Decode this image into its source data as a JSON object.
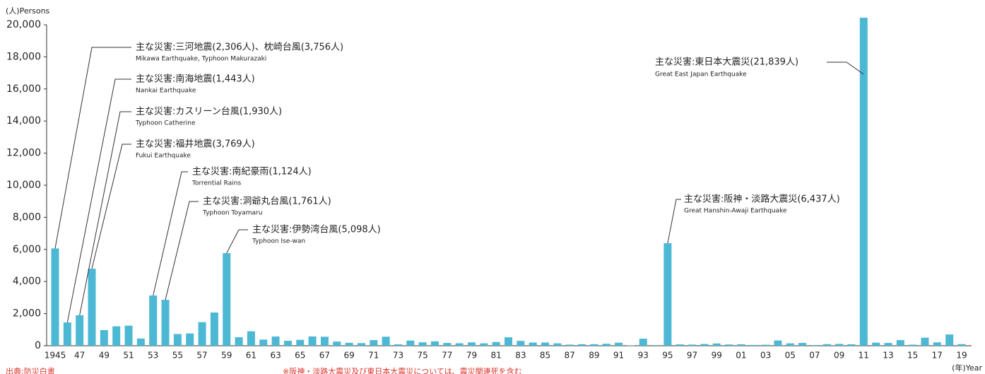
{
  "chart_data": {
    "type": "bar",
    "y_label": "(人)Persons",
    "x_label": "(年)Year",
    "color": "#4db8d4",
    "categories": [
      "1945",
      null,
      "47",
      null,
      "49",
      null,
      "51",
      null,
      "53",
      null,
      "55",
      null,
      "57",
      null,
      "59",
      null,
      "61",
      null,
      "63",
      null,
      "65",
      null,
      "67",
      null,
      "69",
      null,
      "71",
      null,
      "73",
      null,
      "75",
      null,
      "77",
      null,
      "79",
      null,
      "81",
      null,
      "83",
      null,
      "85",
      null,
      "87",
      null,
      "89",
      null,
      "91",
      null,
      "93",
      null,
      "95",
      null,
      "97",
      null,
      "99",
      null,
      "01",
      null,
      "03",
      null,
      "05",
      null,
      "07",
      null,
      "09",
      null,
      "11",
      null,
      "13",
      null,
      "15",
      null,
      "17",
      null,
      "19"
    ],
    "values": [
      6062,
      1450,
      1900,
      4800,
      975,
      1210,
      1250,
      449,
      3130,
      2860,
      727,
      765,
      1470,
      2070,
      5770,
      528,
      902,
      381,
      575,
      307,
      367,
      578,
      560,
      259,
      183,
      163,
      350,
      560,
      85,
      324,
      213,
      273,
      174,
      153,
      208,
      148,
      232,
      524,
      301,
      199,
      199,
      148,
      69,
      93,
      96,
      123,
      190,
      19,
      438,
      39,
      6390,
      84,
      71,
      109,
      141,
      78,
      90,
      48,
      62,
      327,
      148,
      177,
      39,
      100,
      115,
      89,
      20440,
      192,
      173,
      350,
      65,
      500,
      210,
      700,
      100
    ],
    "ylim": [
      0,
      20000
    ],
    "yticks": [
      {
        "value": 0,
        "label": "0"
      },
      {
        "value": 2000,
        "label": "2,000"
      },
      {
        "value": 4000,
        "label": "4,000"
      },
      {
        "value": 6000,
        "label": "6,000"
      },
      {
        "value": 8000,
        "label": "8,000"
      },
      {
        "value": 10000,
        "label": "10,000"
      },
      {
        "value": 12000,
        "label": "12,000"
      },
      {
        "value": 14000,
        "label": "14,000"
      },
      {
        "value": 16000,
        "label": "16,000"
      },
      {
        "value": 18000,
        "label": "18,000"
      },
      {
        "value": 20000,
        "label": "20,000"
      }
    ],
    "annotations": [
      {
        "text": "主な災害:三河地震(2,306人)、枕崎台風(3,756人)",
        "subtext": "Mikawa Earthquake, Typhoon Makurazaki"
      },
      {
        "text": "主な災害:南海地震(1,443人)",
        "subtext": "Nankai Earthquake"
      },
      {
        "text": "主な災害:カスリーン台風(1,930人)",
        "subtext": "Typhoon Catherine"
      },
      {
        "text": "主な災害:福井地震(3,769人)",
        "subtext": "Fukui Earthquake"
      },
      {
        "text": "主な災害:南紀豪雨(1,124人)",
        "subtext": "Torrential Rains"
      },
      {
        "text": "主な災害:洞爺丸台風(1,761人)",
        "subtext": "Typhoon Toyamaru"
      },
      {
        "text": "主な災害:伊勢湾台風(5,098人)",
        "subtext": "Typhoon Ise-wan"
      },
      {
        "text": "主な災害:阪神・淡路大震災(6,437人)",
        "subtext": "Great Hanshin-Awaji Earthquake"
      },
      {
        "text": "主な災害:東日本大震災(21,839人)",
        "subtext": "Great East Japan Earthquake"
      }
    ],
    "notes": [
      "出典:防災白書",
      "※阪神・淡路大震災及び東日本大震災については、震災関連死を含む"
    ]
  }
}
